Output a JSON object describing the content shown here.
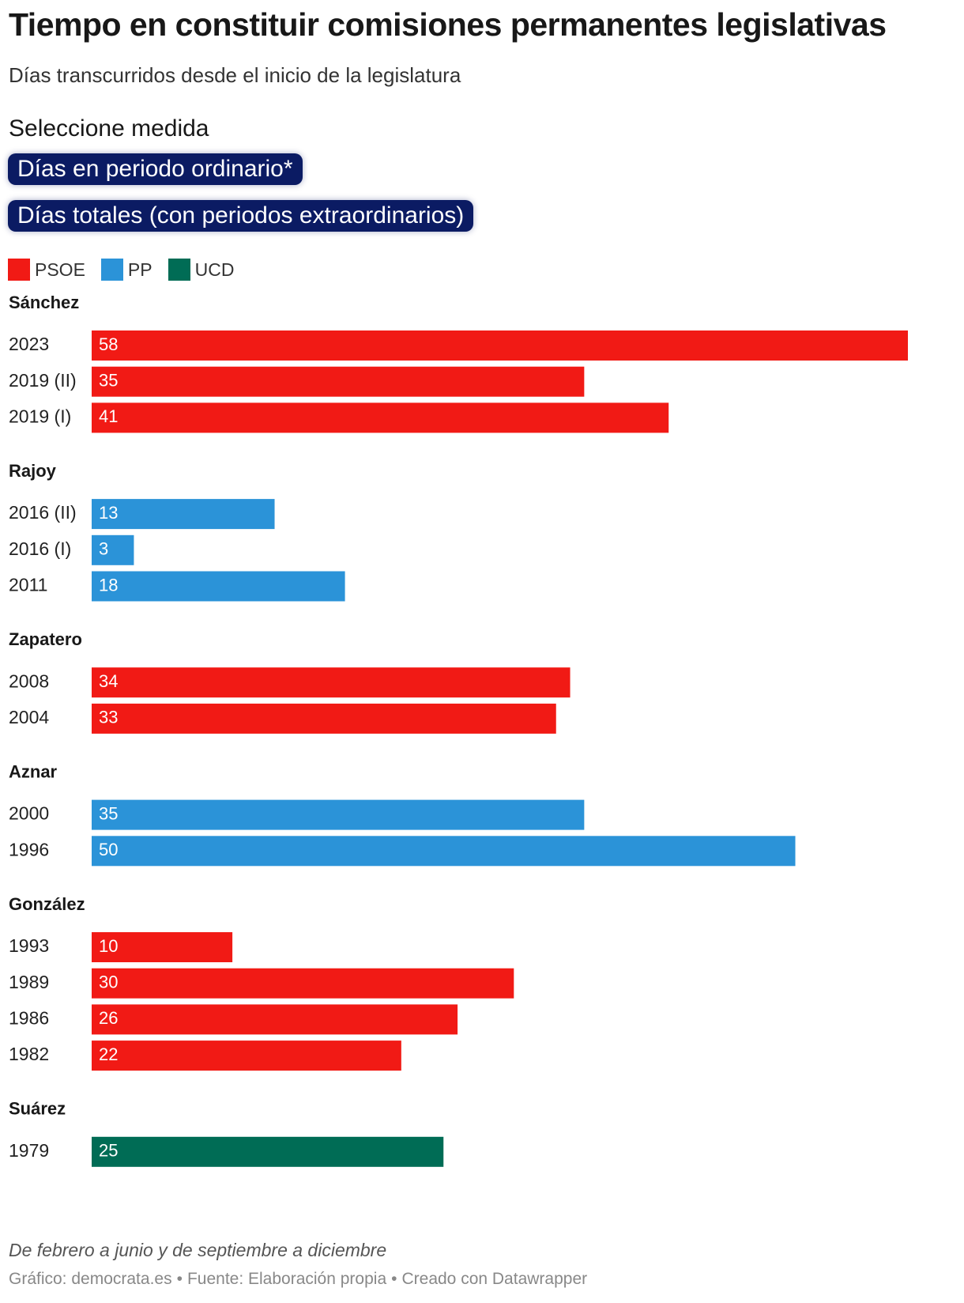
{
  "header": {
    "title": "Tiempo en constituir comisiones permanentes legislativas",
    "subtitle": "Días transcurridos desde el inicio de la legislatura"
  },
  "selector": {
    "label": "Seleccione medida",
    "options": [
      "Días en periodo ordinario*",
      "Días totales (con periodos extraordinarios)"
    ]
  },
  "legend": [
    {
      "label": "PSOE",
      "color": "#f11a15"
    },
    {
      "label": "PP",
      "color": "#2b93d8"
    },
    {
      "label": "UCD",
      "color": "#006c55"
    }
  ],
  "chart_data": {
    "type": "bar",
    "orientation": "horizontal",
    "xlim": [
      0,
      58
    ],
    "grid": false,
    "legend_position": "top-left",
    "colors": {
      "PSOE": "#f11a15",
      "PP": "#2b93d8",
      "UCD": "#006c55"
    },
    "groups": [
      {
        "name": "Sánchez",
        "bars": [
          {
            "label": "2023",
            "value": 58,
            "party": "PSOE"
          },
          {
            "label": "2019 (II)",
            "value": 35,
            "party": "PSOE"
          },
          {
            "label": "2019 (I)",
            "value": 41,
            "party": "PSOE"
          }
        ]
      },
      {
        "name": "Rajoy",
        "bars": [
          {
            "label": "2016 (II)",
            "value": 13,
            "party": "PP"
          },
          {
            "label": "2016 (I)",
            "value": 3,
            "party": "PP"
          },
          {
            "label": "2011",
            "value": 18,
            "party": "PP"
          }
        ]
      },
      {
        "name": "Zapatero",
        "bars": [
          {
            "label": "2008",
            "value": 34,
            "party": "PSOE"
          },
          {
            "label": "2004",
            "value": 33,
            "party": "PSOE"
          }
        ]
      },
      {
        "name": "Aznar",
        "bars": [
          {
            "label": "2000",
            "value": 35,
            "party": "PP"
          },
          {
            "label": "1996",
            "value": 50,
            "party": "PP"
          }
        ]
      },
      {
        "name": "González",
        "bars": [
          {
            "label": "1993",
            "value": 10,
            "party": "PSOE"
          },
          {
            "label": "1989",
            "value": 30,
            "party": "PSOE"
          },
          {
            "label": "1986",
            "value": 26,
            "party": "PSOE"
          },
          {
            "label": "1982",
            "value": 22,
            "party": "PSOE"
          }
        ]
      },
      {
        "name": "Suárez",
        "bars": [
          {
            "label": "1979",
            "value": 25,
            "party": "UCD"
          }
        ]
      }
    ]
  },
  "footer": {
    "note": "De febrero a junio y de septiembre a diciembre",
    "credits": [
      "Gráfico: democrata.es",
      "Fuente: Elaboración propia",
      "Creado con Datawrapper"
    ],
    "separator": "•"
  }
}
